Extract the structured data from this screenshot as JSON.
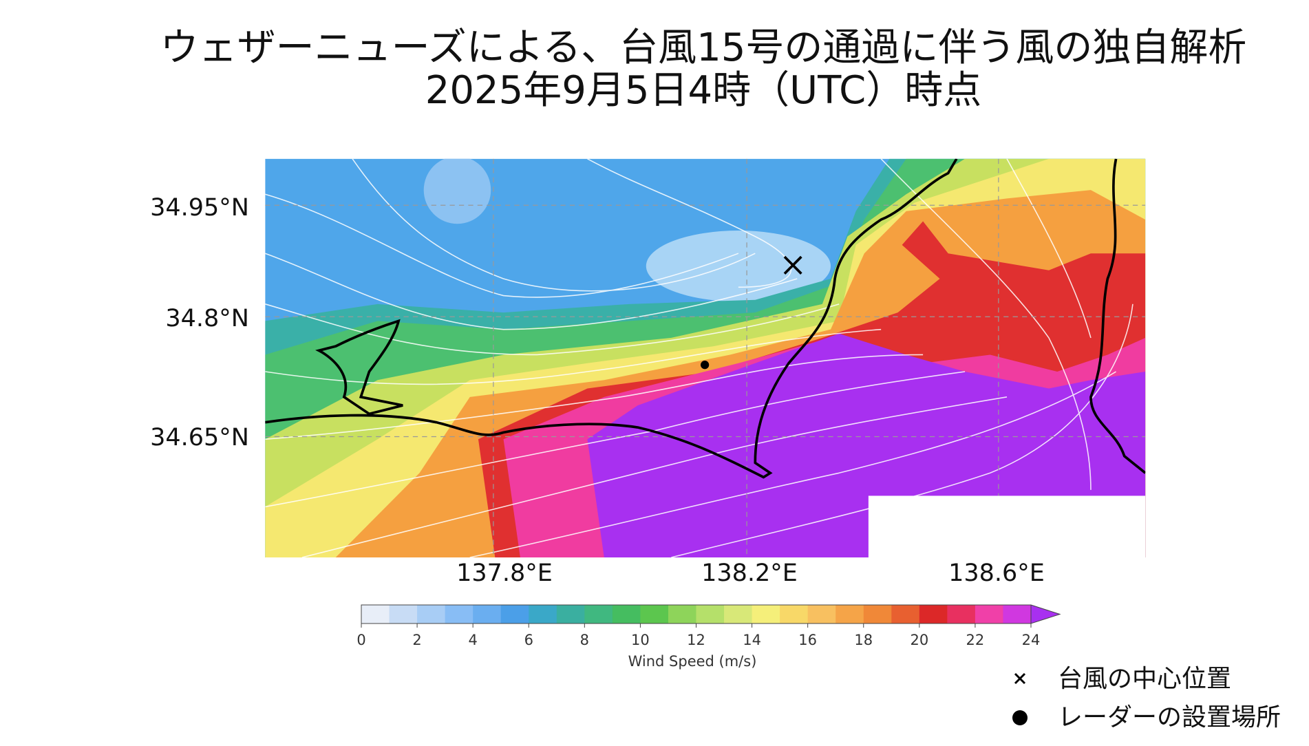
{
  "title": [
    "ウェザーニューズによる、台風15号の通過に伴う風の独自解析",
    "2025年9月5日4時（UTC）時点"
  ],
  "map": {
    "lat_labels": [
      "34.95°N",
      "34.8°N",
      "34.65°N"
    ],
    "lon_labels": [
      "137.8°E",
      "138.2°E",
      "138.6°E"
    ]
  },
  "colorbar": {
    "label": "Wind Speed (m/s)",
    "lim": [
      0,
      24
    ],
    "ticks": [
      0,
      2,
      4,
      6,
      8,
      10,
      12,
      14,
      16,
      18,
      20,
      22,
      24
    ],
    "colors": [
      "#e8eef8",
      "#c8dcf5",
      "#a8cdf5",
      "#88bdf5",
      "#6aaef0",
      "#4b9fe8",
      "#3aa8c8",
      "#3aafa0",
      "#40b880",
      "#45bd60",
      "#5cc64e",
      "#8ed45a",
      "#b5e06a",
      "#d8e878",
      "#f5ef7a",
      "#f8d868",
      "#f8c060",
      "#f5a448",
      "#f08838",
      "#e86030",
      "#dc2828",
      "#e83060",
      "#f040a8",
      "#d038e0"
    ],
    "over_color": "#a830f0"
  },
  "legend": [
    "台風の中心位置",
    "レーダーの設置場所"
  ]
}
